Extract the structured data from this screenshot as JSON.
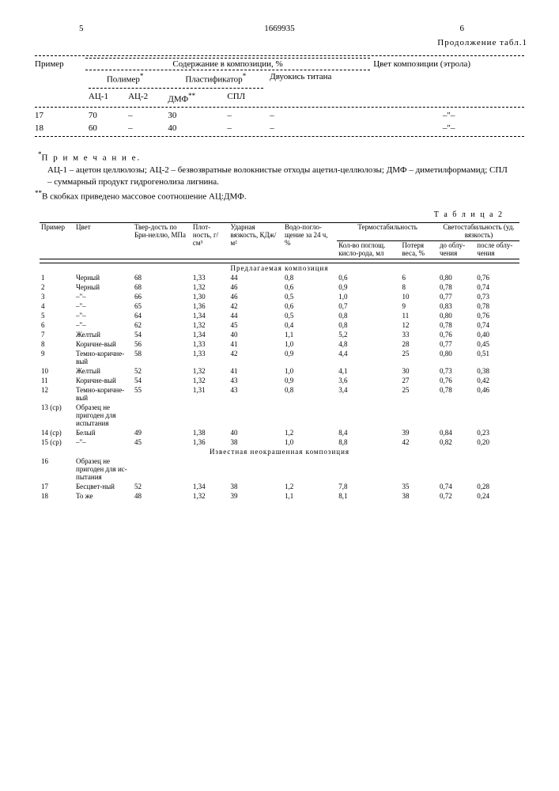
{
  "header": {
    "col_left": "5",
    "col_right": "6",
    "docnum": "1669935",
    "continuation": "Продолжение табл.1"
  },
  "table1": {
    "h_example": "Пример",
    "h_comp": "Содержание в композиции, %",
    "h_color": "Цвет композиции (этрола)",
    "h_polymer": "Полимер",
    "h_plast": "Пластификатор",
    "h_tio2": "Двуокись титана",
    "h_ac1": "АЦ-1",
    "h_ac2": "АЦ-2",
    "h_dmf": "ДМФ",
    "h_spl": "СПЛ",
    "rows": [
      {
        "n": "17",
        "ac1": "70",
        "ac2": "–",
        "dmf": "30",
        "spl": "–",
        "tio2": "–",
        "color": "–\"–"
      },
      {
        "n": "18",
        "ac1": "60",
        "ac2": "–",
        "dmf": "40",
        "spl": "–",
        "tio2": "–",
        "color": "–\"–"
      }
    ]
  },
  "note": {
    "title": "П р и м е ч а н и е.",
    "l1": "АЦ-1 – ацетон целлюлозы; АЦ-2 – безвозвратные волокнистые отходы ацетил-целлюлозы; ДМФ – диметилформамид; СПЛ – суммарный продукт гидрогенолиза лигнина.",
    "l2": "В скобках приведено массовое соотношение АЦ:ДМФ."
  },
  "table2": {
    "caption": "Т а б л и ц а  2",
    "h_example": "Пример",
    "h_color": "Цвет",
    "h_hard": "Твер-дость по Бри-неллю, МПа",
    "h_dens": "Плот-ность, г/см³",
    "h_impact": "Ударная вязкость, КДж/м²",
    "h_water": "Водо-погло-щение за 24 ч, %",
    "h_thermo": "Термостабильность",
    "h_light": "Светостабильность (уд. вязкость)",
    "h_oxy": "Кол-во поглощ. кисло-рода, мл",
    "h_loss": "Потеря веса, %",
    "h_before": "до облу-чения",
    "h_after": "после облу-чения",
    "section1": "Предлагаемая композиция",
    "section2": "Известная неокрашенная композиция",
    "rows": [
      {
        "n": "1",
        "c": "Черный",
        "h": "68",
        "d": "1,33",
        "i": "44",
        "w": "0,8",
        "o": "0,6",
        "l": "6",
        "b": "0,80",
        "a": "0,76"
      },
      {
        "n": "2",
        "c": "Черный",
        "h": "68",
        "d": "1,32",
        "i": "46",
        "w": "0,6",
        "o": "0,9",
        "l": "8",
        "b": "0,78",
        "a": "0,74"
      },
      {
        "n": "3",
        "c": "–\"–",
        "h": "66",
        "d": "1,30",
        "i": "46",
        "w": "0,5",
        "o": "1,0",
        "l": "10",
        "b": "0,77",
        "a": "0,73"
      },
      {
        "n": "4",
        "c": "–\"–",
        "h": "65",
        "d": "1,36",
        "i": "42",
        "w": "0,6",
        "o": "0,7",
        "l": "9",
        "b": "0,83",
        "a": "0,78"
      },
      {
        "n": "5",
        "c": "–\"–",
        "h": "64",
        "d": "1,34",
        "i": "44",
        "w": "0,5",
        "o": "0,8",
        "l": "11",
        "b": "0,80",
        "a": "0,76"
      },
      {
        "n": "6",
        "c": "–\"–",
        "h": "62",
        "d": "1,32",
        "i": "45",
        "w": "0,4",
        "o": "0,8",
        "l": "12",
        "b": "0,78",
        "a": "0,74"
      },
      {
        "n": "7",
        "c": "Желтый",
        "h": "54",
        "d": "1,34",
        "i": "40",
        "w": "1,1",
        "o": "5,2",
        "l": "33",
        "b": "0,76",
        "a": "0,40"
      },
      {
        "n": "8",
        "c": "Коричне-вый",
        "h": "56",
        "d": "1,33",
        "i": "41",
        "w": "1,0",
        "o": "4,8",
        "l": "28",
        "b": "0,77",
        "a": "0,45"
      },
      {
        "n": "9",
        "c": "Темно-коричне-вый",
        "h": "58",
        "d": "1,33",
        "i": "42",
        "w": "0,9",
        "o": "4,4",
        "l": "25",
        "b": "0,80",
        "a": "0,51"
      },
      {
        "n": "10",
        "c": "Желтый",
        "h": "52",
        "d": "1,32",
        "i": "41",
        "w": "1,0",
        "o": "4,1",
        "l": "30",
        "b": "0,73",
        "a": "0,38"
      },
      {
        "n": "11",
        "c": "Коричне-вый",
        "h": "54",
        "d": "1,32",
        "i": "43",
        "w": "0,9",
        "o": "3,6",
        "l": "27",
        "b": "0,76",
        "a": "0,42"
      },
      {
        "n": "12",
        "c": "Темно-коричне-вый",
        "h": "55",
        "d": "1,31",
        "i": "43",
        "w": "0,8",
        "o": "3,4",
        "l": "25",
        "b": "0,78",
        "a": "0,46"
      },
      {
        "n": "13 (ср)",
        "c": "Образец не пригоден для испытания",
        "h": "",
        "d": "",
        "i": "",
        "w": "",
        "o": "",
        "l": "",
        "b": "",
        "a": ""
      },
      {
        "n": "14 (ср)",
        "c": "Белый",
        "h": "49",
        "d": "1,38",
        "i": "40",
        "w": "1,2",
        "o": "8,4",
        "l": "39",
        "b": "0,84",
        "a": "0,23"
      },
      {
        "n": "15 (ср)",
        "c": "–\"–",
        "h": "45",
        "d": "1,36",
        "i": "38",
        "w": "1,0",
        "o": "8,8",
        "l": "42",
        "b": "0,82",
        "a": "0,20"
      }
    ],
    "rows2": [
      {
        "n": "16",
        "c": "Образец не пригоден для ис-пытания",
        "h": "",
        "d": "",
        "i": "",
        "w": "",
        "o": "",
        "l": "",
        "b": "",
        "a": ""
      },
      {
        "n": "17",
        "c": "Бесцвет-ный",
        "h": "52",
        "d": "1,34",
        "i": "38",
        "w": "1,2",
        "o": "7,8",
        "l": "35",
        "b": "0,74",
        "a": "0,28"
      },
      {
        "n": "18",
        "c": "То же",
        "h": "48",
        "d": "1,32",
        "i": "39",
        "w": "1,1",
        "o": "8,1",
        "l": "38",
        "b": "0,72",
        "a": "0,24"
      }
    ]
  }
}
